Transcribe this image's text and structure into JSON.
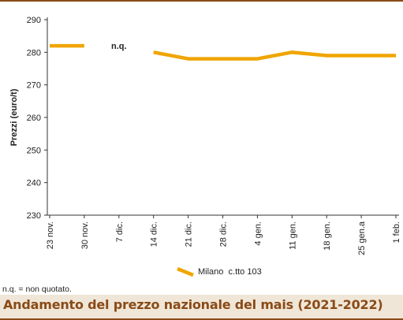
{
  "chart_data": {
    "type": "line",
    "ylabel": "Prezzi (euro/t)",
    "xlabel": "",
    "ylim": [
      230,
      290
    ],
    "yticks": [
      230,
      240,
      250,
      260,
      270,
      280,
      290
    ],
    "categories": [
      "23 nov.",
      "30 nov.",
      "7 dic.",
      "14 dic.",
      "21 dic.",
      "28 dic.",
      "4 gen.",
      "11 gen.",
      "18 gen.",
      "25 gen.a",
      "1 feb."
    ],
    "series": [
      {
        "name": "Milano  c.tto 103",
        "color": "#f0a500",
        "values": [
          282,
          282,
          null,
          280,
          278,
          278,
          278,
          280,
          279,
          279,
          279
        ]
      }
    ],
    "annotations": [
      {
        "text": "n.q.",
        "category": "7 dic.",
        "y": 282
      }
    ],
    "grid": false,
    "legend": "bottom-center"
  },
  "footer": {
    "note": "n.q. = non quotato.",
    "title": "Andamento del prezzo nazionale del mais (2021-2022)"
  },
  "colors": {
    "accent": "#8a4a16",
    "title_bg": "#efe6d8",
    "line": "#f0a500"
  }
}
